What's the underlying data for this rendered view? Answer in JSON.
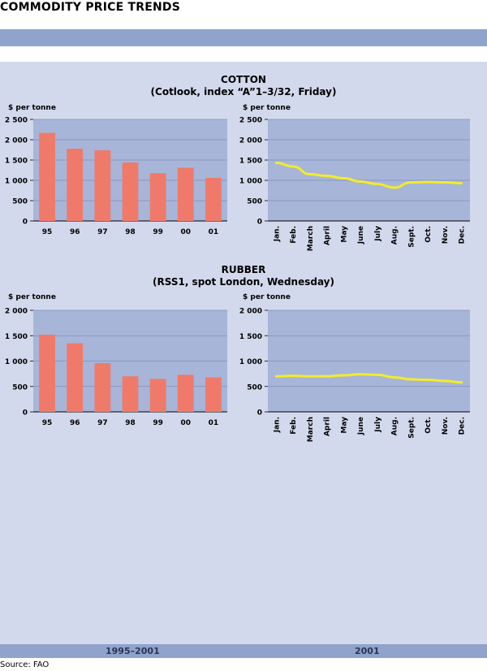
{
  "page_title": "COMMODITY PRICE TRENDS",
  "footer": {
    "left_label": "1995–2001",
    "right_label": "2001",
    "source": "Source: FAO"
  },
  "colors": {
    "band": "#8fa3cc",
    "panel": "#d3d9ec",
    "plot_bg": "#a7b5d8",
    "bar": "#f07a6a",
    "line": "#f2ec2c",
    "grid": "#7f8fbf"
  },
  "sections": [
    {
      "title": "COTTON",
      "subtitle": "(Cotlook, index “A”1–3/32, Friday)"
    },
    {
      "title": "RUBBER",
      "subtitle": "(RSS1, spot London, Wednesday)"
    }
  ],
  "chart_data": [
    {
      "type": "bar",
      "ylabel": "$ per tonne",
      "ylim": [
        0,
        2500
      ],
      "yticks": [
        0,
        500,
        1000,
        1500,
        2000,
        2500
      ],
      "ytick_labels": [
        "0",
        "500",
        "1 000",
        "1 500",
        "2 000",
        "2 500"
      ],
      "categories": [
        "95",
        "96",
        "97",
        "98",
        "99",
        "00",
        "01"
      ],
      "values": [
        2170,
        1780,
        1740,
        1440,
        1175,
        1310,
        1060
      ],
      "grid": true
    },
    {
      "type": "line",
      "ylabel": "$ per tonne",
      "ylim": [
        0,
        2500
      ],
      "yticks": [
        0,
        500,
        1000,
        1500,
        2000,
        2500
      ],
      "ytick_labels": [
        "0",
        "500",
        "1 000",
        "1 500",
        "2 000",
        "2 500"
      ],
      "categories": [
        "Jan.",
        "Feb.",
        "March",
        "April",
        "May",
        "June",
        "July",
        "Aug.",
        "Sept.",
        "Oct.",
        "Nov.",
        "Dec."
      ],
      "values": [
        1430,
        1340,
        1150,
        1110,
        1050,
        970,
        910,
        820,
        950,
        960,
        950,
        930
      ],
      "grid": true
    },
    {
      "type": "bar",
      "ylabel": "$ per tonne",
      "ylim": [
        0,
        2000
      ],
      "yticks": [
        0,
        500,
        1000,
        1500,
        2000
      ],
      "ytick_labels": [
        "0",
        "500",
        "1 000",
        "1 500",
        "2 000"
      ],
      "categories": [
        "95",
        "96",
        "97",
        "98",
        "99",
        "00",
        "01"
      ],
      "values": [
        1520,
        1350,
        960,
        700,
        650,
        730,
        680
      ],
      "grid": true
    },
    {
      "type": "line",
      "ylabel": "$ per tonne",
      "ylim": [
        0,
        2000
      ],
      "yticks": [
        0,
        500,
        1000,
        1500,
        2000
      ],
      "ytick_labels": [
        "0",
        "500",
        "1 000",
        "1 500",
        "2 000"
      ],
      "categories": [
        "Jan.",
        "Feb.",
        "March",
        "April",
        "May",
        "June",
        "July",
        "Aug.",
        "Sept.",
        "Oct.",
        "Nov.",
        "Dec."
      ],
      "values": [
        700,
        710,
        700,
        700,
        720,
        740,
        730,
        680,
        640,
        630,
        610,
        580
      ],
      "grid": true
    }
  ]
}
